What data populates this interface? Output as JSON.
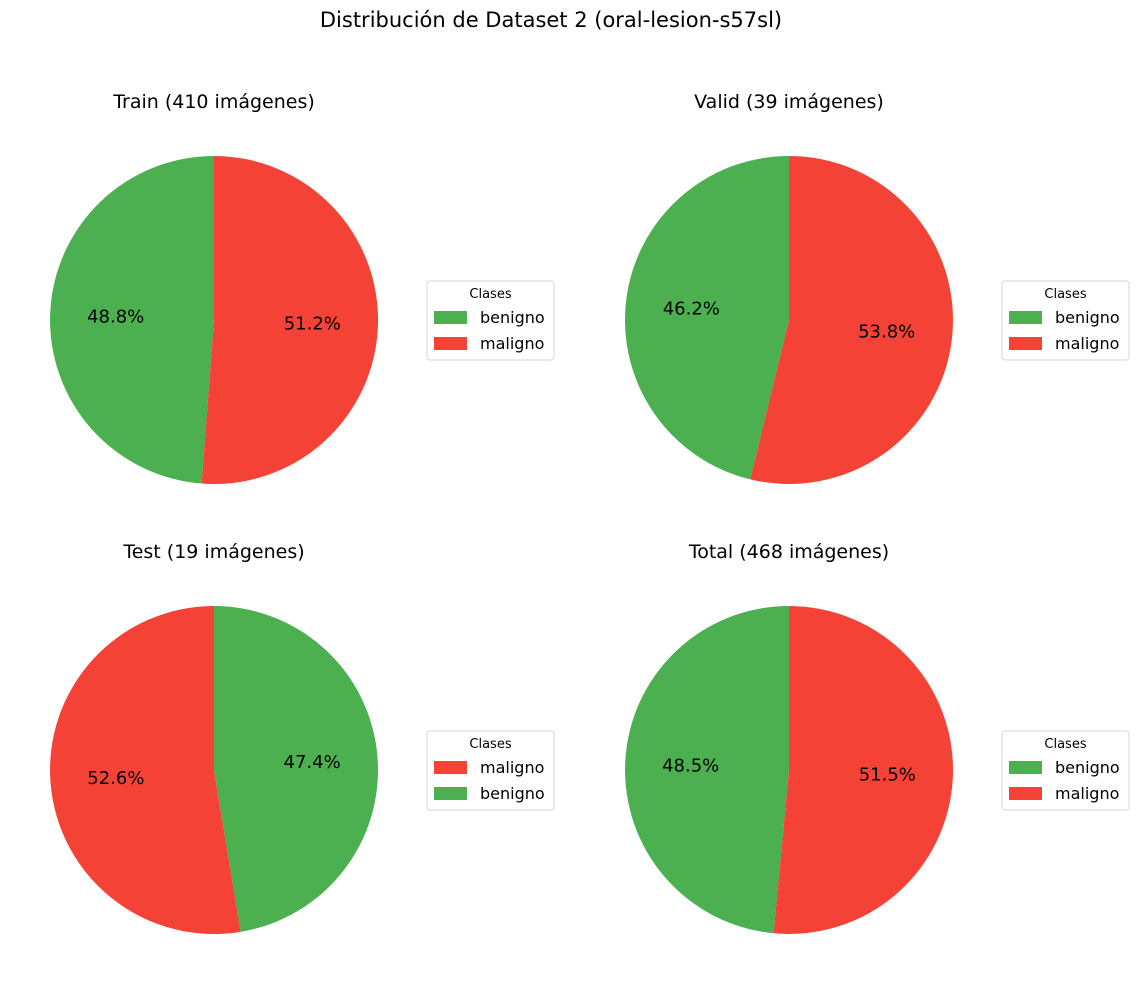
{
  "figure": {
    "suptitle": "Distribución de Dataset 2 (oral-lesion-s57sl)"
  },
  "colors": {
    "benigno": "#4caf50",
    "maligno": "#f44336"
  },
  "chart_data": [
    {
      "type": "pie",
      "title": "Train (410 imágenes)",
      "labels": [
        "benigno",
        "maligno"
      ],
      "values": [
        48.8,
        51.2
      ],
      "value_labels": [
        "48.8%",
        "51.2%"
      ],
      "start_angle_deg": 90,
      "direction": "counterclockwise",
      "legend": {
        "title": "Clases",
        "entries": [
          "benigno",
          "maligno"
        ],
        "placement": "right"
      }
    },
    {
      "type": "pie",
      "title": "Valid (39 imágenes)",
      "labels": [
        "benigno",
        "maligno"
      ],
      "values": [
        46.2,
        53.8
      ],
      "value_labels": [
        "46.2%",
        "53.8%"
      ],
      "start_angle_deg": 90,
      "direction": "counterclockwise",
      "legend": {
        "title": "Clases",
        "entries": [
          "benigno",
          "maligno"
        ],
        "placement": "right"
      }
    },
    {
      "type": "pie",
      "title": "Test (19 imágenes)",
      "labels": [
        "maligno",
        "benigno"
      ],
      "values": [
        52.6,
        47.4
      ],
      "value_labels": [
        "52.6%",
        "47.4%"
      ],
      "start_angle_deg": 90,
      "direction": "counterclockwise",
      "legend": {
        "title": "Clases",
        "entries": [
          "maligno",
          "benigno"
        ],
        "placement": "right"
      }
    },
    {
      "type": "pie",
      "title": "Total (468 imágenes)",
      "labels": [
        "benigno",
        "maligno"
      ],
      "values": [
        48.5,
        51.5
      ],
      "value_labels": [
        "48.5%",
        "51.5%"
      ],
      "start_angle_deg": 90,
      "direction": "counterclockwise",
      "legend": {
        "title": "Clases",
        "entries": [
          "benigno",
          "maligno"
        ],
        "placement": "right"
      }
    }
  ]
}
